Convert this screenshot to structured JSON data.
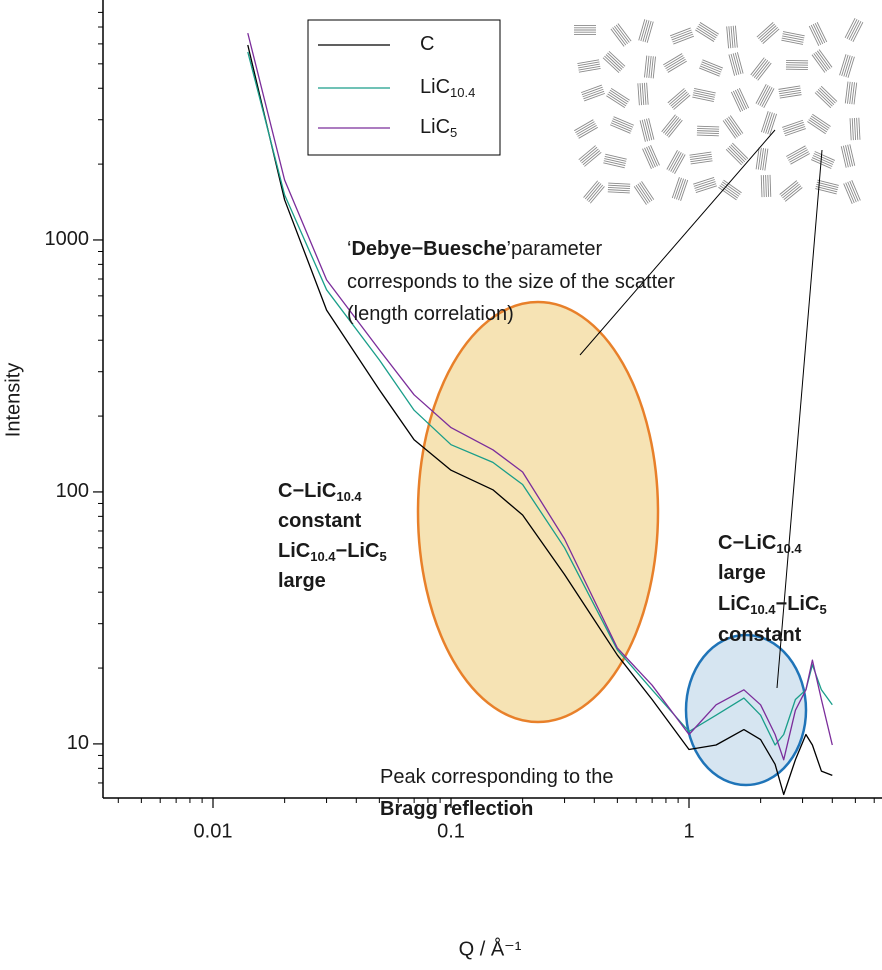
{
  "chart_data": {
    "type": "line",
    "xlabel": "Q / Å⁻¹",
    "ylabel": "Intensity",
    "xscale": "log",
    "yscale": "log",
    "xlim": [
      0.00345,
      6.47
    ],
    "ylim": [
      6.1,
      8960
    ],
    "xticks": [
      0.01,
      0.1,
      1
    ],
    "yticks": [
      10,
      100,
      1000
    ],
    "xminorticks": [
      0.004,
      0.005,
      0.006,
      0.007,
      0.008,
      0.009,
      0.02,
      0.03,
      0.04,
      0.05,
      0.06,
      0.07,
      0.08,
      0.09,
      0.2,
      0.3,
      0.4,
      0.5,
      0.6,
      0.7,
      0.8,
      0.9,
      2,
      3,
      4,
      5,
      6
    ],
    "yminorticks": [
      7,
      8,
      9,
      20,
      30,
      40,
      50,
      60,
      70,
      80,
      90,
      200,
      300,
      400,
      500,
      600,
      700,
      800,
      900,
      2000,
      3000,
      4000,
      5000,
      6000,
      7000,
      8000
    ],
    "legend": "upper center",
    "x": [
      0.014,
      0.02,
      0.03,
      0.05,
      0.07,
      0.1,
      0.15,
      0.2,
      0.3,
      0.5,
      0.7,
      1,
      1.3,
      1.7,
      2,
      2.3,
      2.5,
      2.8,
      3.1,
      3.3,
      3.6,
      4
    ],
    "series": [
      {
        "name": "C",
        "color": "#000000",
        "values": [
          5940,
          1443,
          527,
          254,
          161,
          122,
          102,
          81,
          47,
          22.5,
          15,
          9.5,
          9.9,
          11.4,
          10.4,
          8.3,
          6.3,
          8.65,
          10.9,
          9.9,
          7.8,
          7.5
        ]
      },
      {
        "name": "LiC10.4",
        "color": "#1a9e8a",
        "values": [
          5570,
          1510,
          634,
          334,
          211,
          154,
          131,
          107,
          60,
          23.6,
          16.4,
          11.2,
          13,
          15.2,
          13,
          9.9,
          10.9,
          15,
          16.4,
          20.6,
          16.4,
          14.3
        ]
      },
      {
        "name": "LiC5",
        "color": "#7b2d9b",
        "values": [
          6620,
          1730,
          694,
          366,
          243,
          180,
          147,
          120,
          65,
          24,
          17.1,
          10.9,
          14.3,
          16.4,
          14.3,
          10.9,
          8.65,
          13.6,
          16.4,
          21.5,
          15,
          9.9
        ]
      }
    ],
    "annotations": [
      {
        "lines": [
          [
            {
              "text": "‘",
              "bold": false
            },
            {
              "text": "Debye−Buesche",
              "bold": true
            },
            {
              "text": "’parameter",
              "bold": false
            }
          ],
          [
            {
              "text": "corresponds to the size of the scatter",
              "bold": false
            }
          ],
          [
            {
              "text": "(length correlation)",
              "bold": false
            }
          ]
        ]
      },
      {
        "lines": [
          [
            {
              "text": "C−LiC10.4",
              "bold": true
            }
          ],
          [
            {
              "text": "constant",
              "bold": true
            }
          ],
          [
            {
              "text": "LiC10.4−LiC5",
              "bold": true
            }
          ],
          [
            {
              "text": "large",
              "bold": true
            }
          ]
        ]
      },
      {
        "lines": [
          [
            {
              "text": "C−LiC10.4",
              "bold": true
            }
          ],
          [
            {
              "text": "large",
              "bold": true
            }
          ],
          [
            {
              "text": "LiC10.4−LiC5",
              "bold": true
            }
          ],
          [
            {
              "text": "constant",
              "bold": true
            }
          ]
        ]
      },
      {
        "lines": [
          [
            {
              "text": "Peak corresponding to the",
              "bold": false
            }
          ],
          [
            {
              "text": "Bragg reflection",
              "bold": true
            }
          ]
        ]
      }
    ]
  }
}
